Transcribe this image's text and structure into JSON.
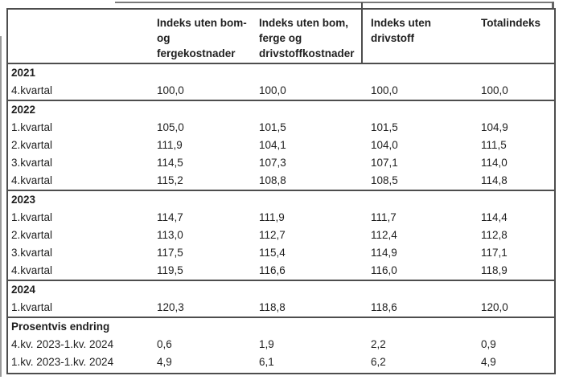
{
  "page": {
    "background": "#ffffff"
  },
  "colors": {
    "border_dark": "#4d4d4d",
    "artifact_grey": "#7a7a7a",
    "text": "#1f1f1f"
  },
  "chart_data": {
    "type": "table",
    "title": "",
    "columns": [
      {
        "label": "",
        "display": ""
      },
      {
        "label": "Indeks uten bom- og fergekostnader",
        "display": "Indeks uten bom-\nog\nfergekostnader"
      },
      {
        "label": "Indeks uten bom, ferge og drivstoffkostnader",
        "display": "Indeks uten bom,\nferge og\ndrivstoffkostnader"
      },
      {
        "label": "Indeks uten drivstoff",
        "display": "Indeks uten\ndrivstoff"
      },
      {
        "label": "Totalindeks",
        "display": "Totalindeks"
      }
    ],
    "sections": [
      {
        "header": "2021",
        "rows": [
          {
            "label": "4.kvartal",
            "values": [
              "100,0",
              "100,0",
              "100,0",
              "100,0"
            ]
          }
        ]
      },
      {
        "header": "2022",
        "rows": [
          {
            "label": "1.kvartal",
            "values": [
              "105,0",
              "101,5",
              "101,5",
              "104,9"
            ]
          },
          {
            "label": "2.kvartal",
            "values": [
              "111,9",
              "104,1",
              "104,0",
              "111,5"
            ]
          },
          {
            "label": "3.kvartal",
            "values": [
              "114,5",
              "107,3",
              "107,1",
              "114,0"
            ]
          },
          {
            "label": "4.kvartal",
            "values": [
              "115,2",
              "108,8",
              "108,5",
              "114,8"
            ]
          }
        ]
      },
      {
        "header": "2023",
        "rows": [
          {
            "label": "1.kvartal",
            "values": [
              "114,7",
              "111,9",
              "111,7",
              "114,4"
            ]
          },
          {
            "label": "2.kvartal",
            "values": [
              "113,0",
              "112,7",
              "112,4",
              "112,8"
            ]
          },
          {
            "label": "3.kvartal",
            "values": [
              "117,5",
              "115,4",
              "114,9",
              "117,1"
            ]
          },
          {
            "label": "4.kvartal",
            "values": [
              "119,5",
              "116,6",
              "116,0",
              "118,9"
            ]
          }
        ]
      },
      {
        "header": "2024",
        "rows": [
          {
            "label": "1.kvartal",
            "values": [
              "120,3",
              "118,8",
              "118,6",
              "120,0"
            ]
          }
        ]
      },
      {
        "header": "Prosentvis endring",
        "rows": [
          {
            "label": "4.kv. 2023-1.kv. 2024",
            "values": [
              "0,6",
              "1,9",
              "2,2",
              "0,9"
            ]
          },
          {
            "label": "1.kv. 2023-1.kv. 2024",
            "values": [
              "4,9",
              "6,1",
              "6,2",
              "4,9"
            ]
          }
        ]
      }
    ]
  }
}
